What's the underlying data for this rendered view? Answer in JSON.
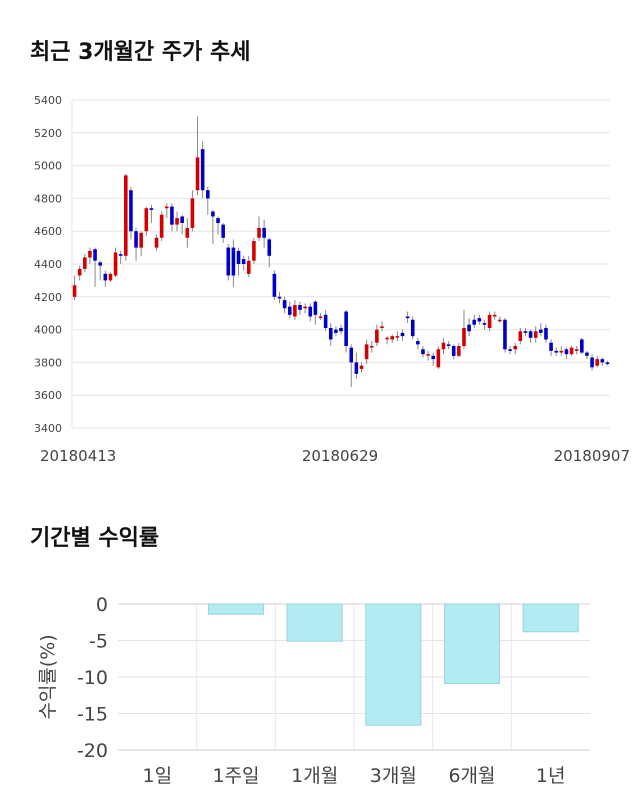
{
  "section1": {
    "title": "최근 3개월간 주가 추세"
  },
  "section2": {
    "title": "기간별 수익률"
  },
  "chart_data": [
    {
      "type": "candlestick",
      "title": "최근 3개월간 주가 추세",
      "ylim": [
        3400,
        5400
      ],
      "yticks": [
        5400,
        5200,
        5000,
        4800,
        4600,
        4400,
        4200,
        4000,
        3800,
        3600,
        3400
      ],
      "xlabels": [
        "20180413",
        "20180629",
        "20180907"
      ],
      "grid": true,
      "colors": {
        "up": "#d40000",
        "down": "#0000c8",
        "wick": "#888888"
      },
      "candles": [
        [
          4200,
          4270,
          4180,
          4330
        ],
        [
          4330,
          4370,
          4300,
          4390
        ],
        [
          4370,
          4440,
          4350,
          4460
        ],
        [
          4440,
          4480,
          4400,
          4500
        ],
        [
          4490,
          4420,
          4260,
          4500
        ],
        [
          4410,
          4390,
          4300,
          4420
        ],
        [
          4340,
          4300,
          4260,
          4360
        ],
        [
          4300,
          4340,
          4290,
          4350
        ],
        [
          4330,
          4470,
          4320,
          4500
        ],
        [
          4460,
          4450,
          4400,
          4480
        ],
        [
          4450,
          4940,
          4420,
          4950
        ],
        [
          4850,
          4600,
          4550,
          4870
        ],
        [
          4600,
          4500,
          4420,
          4620
        ],
        [
          4500,
          4590,
          4450,
          4600
        ],
        [
          4600,
          4740,
          4570,
          4750
        ],
        [
          4740,
          4730,
          4650,
          4760
        ],
        [
          4500,
          4560,
          4480,
          4580
        ],
        [
          4560,
          4700,
          4540,
          4720
        ],
        [
          4740,
          4750,
          4680,
          4770
        ],
        [
          4750,
          4640,
          4600,
          4770
        ],
        [
          4640,
          4680,
          4600,
          4720
        ],
        [
          4690,
          4650,
          4580,
          4700
        ],
        [
          4560,
          4620,
          4500,
          4680
        ],
        [
          4620,
          4800,
          4600,
          4850
        ],
        [
          4850,
          5050,
          4820,
          5300
        ],
        [
          5100,
          4850,
          4800,
          5150
        ],
        [
          4850,
          4800,
          4700,
          4870
        ],
        [
          4720,
          4690,
          4520,
          4730
        ],
        [
          4680,
          4650,
          4580,
          4690
        ],
        [
          4640,
          4560,
          4530,
          4650
        ],
        [
          4500,
          4330,
          4300,
          4520
        ],
        [
          4500,
          4330,
          4260,
          4550
        ],
        [
          4480,
          4400,
          4330,
          4500
        ],
        [
          4430,
          4400,
          4360,
          4450
        ],
        [
          4340,
          4420,
          4320,
          4450
        ],
        [
          4420,
          4540,
          4400,
          4560
        ],
        [
          4560,
          4620,
          4540,
          4690
        ],
        [
          4620,
          4560,
          4500,
          4670
        ],
        [
          4550,
          4450,
          4380,
          4560
        ],
        [
          4340,
          4200,
          4180,
          4360
        ],
        [
          4200,
          4190,
          4160,
          4230
        ],
        [
          4180,
          4130,
          4100,
          4200
        ],
        [
          4140,
          4090,
          4070,
          4170
        ],
        [
          4080,
          4150,
          4060,
          4180
        ],
        [
          4150,
          4120,
          4090,
          4170
        ],
        [
          4130,
          4140,
          4100,
          4160
        ],
        [
          4140,
          4080,
          4050,
          4160
        ],
        [
          4170,
          4090,
          4030,
          4180
        ],
        [
          4080,
          4080,
          4060,
          4100
        ],
        [
          4090,
          4010,
          3990,
          4120
        ],
        [
          4010,
          3940,
          3900,
          4040
        ],
        [
          4000,
          3980,
          3960,
          4020
        ],
        [
          4010,
          3990,
          3970,
          4030
        ],
        [
          4110,
          3900,
          3860,
          4120
        ],
        [
          3890,
          3800,
          3650,
          3910
        ],
        [
          3800,
          3730,
          3700,
          3860
        ],
        [
          3760,
          3780,
          3740,
          3800
        ],
        [
          3820,
          3910,
          3790,
          3940
        ],
        [
          3900,
          3900,
          3860,
          3930
        ],
        [
          3920,
          4000,
          3900,
          4030
        ],
        [
          4010,
          4020,
          3990,
          4050
        ],
        [
          3950,
          3950,
          3910,
          3960
        ],
        [
          3940,
          3960,
          3920,
          3970
        ],
        [
          3960,
          3960,
          3930,
          3990
        ],
        [
          3980,
          3960,
          3930,
          4000
        ],
        [
          4080,
          4070,
          4040,
          4110
        ],
        [
          4060,
          3960,
          3940,
          4080
        ],
        [
          3930,
          3910,
          3880,
          3950
        ],
        [
          3880,
          3850,
          3830,
          3900
        ],
        [
          3850,
          3850,
          3810,
          3870
        ],
        [
          3840,
          3820,
          3780,
          3860
        ],
        [
          3770,
          3880,
          3760,
          3900
        ],
        [
          3880,
          3920,
          3850,
          3950
        ],
        [
          3910,
          3900,
          3880,
          3930
        ],
        [
          3900,
          3840,
          3820,
          3910
        ],
        [
          3840,
          3900,
          3830,
          3920
        ],
        [
          3900,
          4010,
          3880,
          4120
        ],
        [
          4030,
          3990,
          3960,
          4070
        ],
        [
          4060,
          4030,
          4010,
          4090
        ],
        [
          4070,
          4050,
          4030,
          4090
        ],
        [
          4040,
          4030,
          4000,
          4060
        ],
        [
          4010,
          4090,
          3990,
          4110
        ],
        [
          4080,
          4090,
          4060,
          4110
        ],
        [
          4060,
          4060,
          4040,
          4080
        ],
        [
          4060,
          3880,
          3860,
          4070
        ],
        [
          3880,
          3870,
          3850,
          3900
        ],
        [
          3880,
          3900,
          3850,
          3920
        ],
        [
          3930,
          3990,
          3910,
          4010
        ],
        [
          3990,
          3980,
          3960,
          4010
        ],
        [
          3990,
          3950,
          3920,
          4000
        ],
        [
          3950,
          3990,
          3920,
          4020
        ],
        [
          4000,
          3980,
          3960,
          4040
        ],
        [
          4010,
          3940,
          3920,
          4030
        ],
        [
          3920,
          3870,
          3840,
          3940
        ],
        [
          3870,
          3860,
          3840,
          3890
        ],
        [
          3860,
          3870,
          3840,
          3900
        ],
        [
          3880,
          3850,
          3820,
          3890
        ],
        [
          3850,
          3890,
          3840,
          3900
        ],
        [
          3870,
          3880,
          3850,
          3900
        ],
        [
          3940,
          3860,
          3850,
          3950
        ],
        [
          3860,
          3840,
          3820,
          3870
        ],
        [
          3830,
          3770,
          3750,
          3850
        ],
        [
          3780,
          3820,
          3770,
          3840
        ],
        [
          3820,
          3800,
          3780,
          3830
        ],
        [
          3800,
          3790,
          3780,
          3810
        ]
      ]
    },
    {
      "type": "bar",
      "title": "기간별 수익률",
      "ylabel": "수익률(%)",
      "categories": [
        "1일",
        "1주일",
        "1개월",
        "3개월",
        "6개월",
        "1년"
      ],
      "values": [
        0,
        -1.4,
        -5.1,
        -16.6,
        -10.9,
        -3.8
      ],
      "ylim": [
        -20,
        0
      ],
      "yticks": [
        0,
        -5,
        -10,
        -15,
        -20
      ],
      "bar_color": "#b2ebf2",
      "bar_edge": "#9ad4dc"
    }
  ]
}
